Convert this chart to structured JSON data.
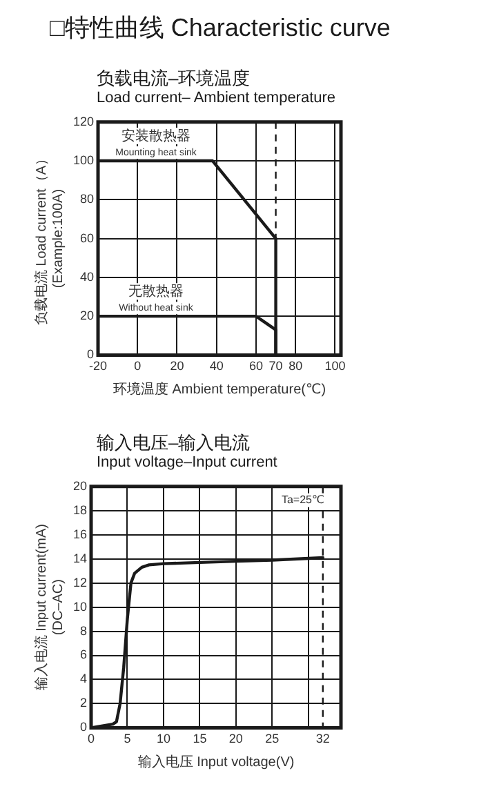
{
  "chart_data": [
    {
      "type": "line",
      "title": "负载电流–环境温度",
      "subtitle": "Load current– Ambient temperature",
      "xlabel": "环境温度 Ambient temperature(℃)",
      "ylabel": "负载电流 Load current（A）\n(Example:100A)",
      "annotations": [
        "□特性曲线 Characteristic curve"
      ],
      "series": [
        {
          "name": "安装散热器\nMounting heat sink",
          "color": "#1a1a1a",
          "x": [
            -20,
            38,
            70,
            70
          ],
          "values": [
            100,
            100,
            60,
            0
          ]
        },
        {
          "name": "无散热器\nWithout heat sink",
          "color": "#1a1a1a",
          "x": [
            -20,
            60,
            70,
            70
          ],
          "values": [
            20,
            20,
            13,
            0
          ]
        }
      ],
      "xlim": [
        -20,
        103
      ],
      "xticks": [
        -20,
        0,
        20,
        40,
        60,
        70,
        80,
        100
      ],
      "ylim": [
        0,
        120
      ],
      "yticks": [
        0,
        20,
        40,
        60,
        80,
        100,
        120
      ],
      "ref_lines": [
        {
          "axis": "x",
          "value": 70,
          "line_style": "dashed",
          "color": "#1a1a1a"
        }
      ],
      "grid": true,
      "legend": false,
      "marker": "none",
      "line_style": "solid"
    },
    {
      "type": "line",
      "title": "输入电压–输入电流",
      "subtitle": "Input voltage–Input current",
      "xlabel": "输入电压 Input voltage(V)",
      "ylabel": "输入电流 Input current(mA)\n(DC–AC)",
      "annotations": [
        "Ta=25℃"
      ],
      "series": [
        {
          "color": "#1a1a1a",
          "x": [
            0,
            1,
            2,
            3,
            3.5,
            4,
            4.5,
            5,
            5.5,
            6,
            7,
            8,
            10,
            15,
            20,
            25,
            32
          ],
          "values": [
            0,
            0.1,
            0.2,
            0.3,
            0.5,
            2,
            5,
            9,
            12,
            12.8,
            13.3,
            13.5,
            13.6,
            13.7,
            13.8,
            13.9,
            14.1
          ]
        }
      ],
      "xlim": [
        0,
        34.5
      ],
      "xticks": [
        0,
        5,
        10,
        15,
        20,
        25,
        {
          "value": 30,
          "label": null
        },
        32
      ],
      "ylim": [
        0,
        20
      ],
      "yticks": [
        0,
        2,
        4,
        6,
        8,
        10,
        12,
        14,
        16,
        18,
        20
      ],
      "ref_lines": [
        {
          "axis": "x",
          "value": 32,
          "line_style": "dashed",
          "color": "#1a1a1a"
        }
      ],
      "grid": true,
      "legend": false,
      "marker": "none",
      "line_style": "solid"
    }
  ]
}
